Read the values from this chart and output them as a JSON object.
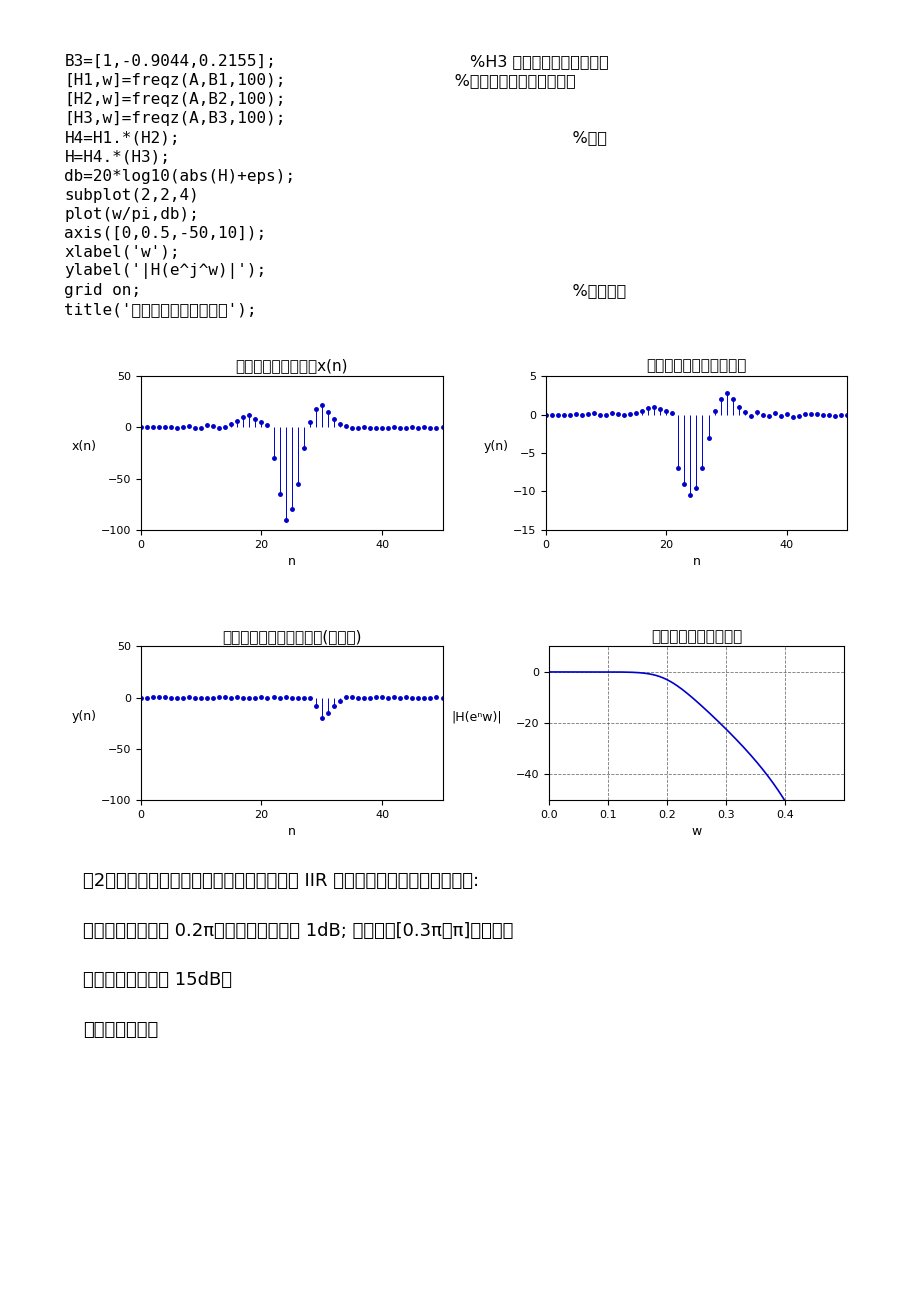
{
  "page_bg": "#ffffff",
  "plot_bg": "#c8c8c8",
  "code_lines": [
    [
      "B3=[1,-0.9044,0.2155];",
      "        %H3 滤波器的分母系数矩阵"
    ],
    [
      "[H1,w]=freqz(A,B1,100);",
      "     %进行滤波器幅频特性分析"
    ],
    [
      "[H2,w]=freqz(A,B2,100);",
      ""
    ],
    [
      "[H3,w]=freqz(A,B3,100);",
      ""
    ],
    [
      "H4=H1.*(H2);",
      "                            %点积"
    ],
    [
      "H=H4.*(H3);",
      ""
    ],
    [
      "db=20*log10(abs(H)+eps);",
      ""
    ],
    [
      "subplot(2,2,4)",
      ""
    ],
    [
      "plot(w/pi,db);",
      ""
    ],
    [
      "axis([0,0.5,-50,10]);",
      ""
    ],
    [
      "xlabel('w');",
      ""
    ],
    [
      "ylabel('|H(e^j^w)|');",
      ""
    ],
    [
      "grid on;",
      "                            %显示方格"
    ],
    [
      "title('滤波器的幅频响应曲线');",
      ""
    ]
  ],
  "subplot_titles": [
    "心电图信号采集序列x(n)",
    "调整坐标后的心电图信号",
    "三级滤波后的心电图信号(原坐标)",
    "滤波器的幅频响应曲线"
  ],
  "subplot1_ylabel": "x(n)",
  "subplot1_xlabel": "n",
  "subplot1_ylim": [
    -100,
    50
  ],
  "subplot1_xlim": [
    0,
    50
  ],
  "subplot2_ylabel": "y(n)",
  "subplot2_xlabel": "n",
  "subplot2_ylim": [
    -15,
    5
  ],
  "subplot2_xlim": [
    0,
    50
  ],
  "subplot3_ylabel": "y(n)",
  "subplot3_xlabel": "n",
  "subplot3_ylim": [
    -100,
    50
  ],
  "subplot3_xlim": [
    0,
    50
  ],
  "subplot4_ylabel": "|H(eⁿw)|",
  "subplot4_xlabel": "w",
  "subplot4_ylim": [
    -50,
    10
  ],
  "subplot4_xlim": [
    0,
    0.5
  ],
  "bottom_text_lines": [
    [
      "（2）用双线性变换法设计一个巴特沃斯低通 IIR 数字滤波器。设计指标参数为:",
      0.03
    ],
    [
      "在通带内频率低于 0.2π时，最大衰减小于 1dB; 在阻带内[0.3π，π]频率区间",
      0.03
    ],
    [
      "上，最小衰减大与 15dB。",
      0.03
    ],
    [
      "参数如下截图：",
      0.03
    ]
  ],
  "line_color": "#0000cc",
  "text_color": "#000000",
  "code_font_size": 11.5,
  "title_font_size": 11
}
